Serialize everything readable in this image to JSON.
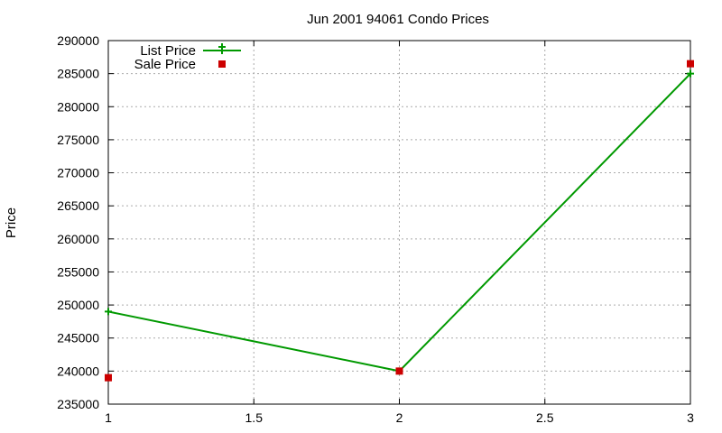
{
  "chart_data": {
    "type": "line",
    "title": "Jun 2001 94061 Condo Prices",
    "xlabel": "",
    "ylabel": "Price",
    "xlim": [
      1,
      3
    ],
    "ylim": [
      235000,
      290000
    ],
    "xticks": [
      "1",
      "1.5",
      "2",
      "2.5",
      "3"
    ],
    "yticks": [
      "235000",
      "240000",
      "245000",
      "250000",
      "255000",
      "260000",
      "265000",
      "270000",
      "275000",
      "280000",
      "285000",
      "290000"
    ],
    "grid": true,
    "legend_position": "top-left",
    "series": [
      {
        "name": "List Price",
        "style": "line+cross",
        "color": "#009900",
        "x": [
          1,
          2,
          3
        ],
        "y": [
          249000,
          240000,
          285000
        ]
      },
      {
        "name": "Sale Price",
        "style": "square-points",
        "color": "#cc0000",
        "x": [
          1,
          2,
          3
        ],
        "y": [
          239000,
          240000,
          286500
        ]
      }
    ]
  }
}
